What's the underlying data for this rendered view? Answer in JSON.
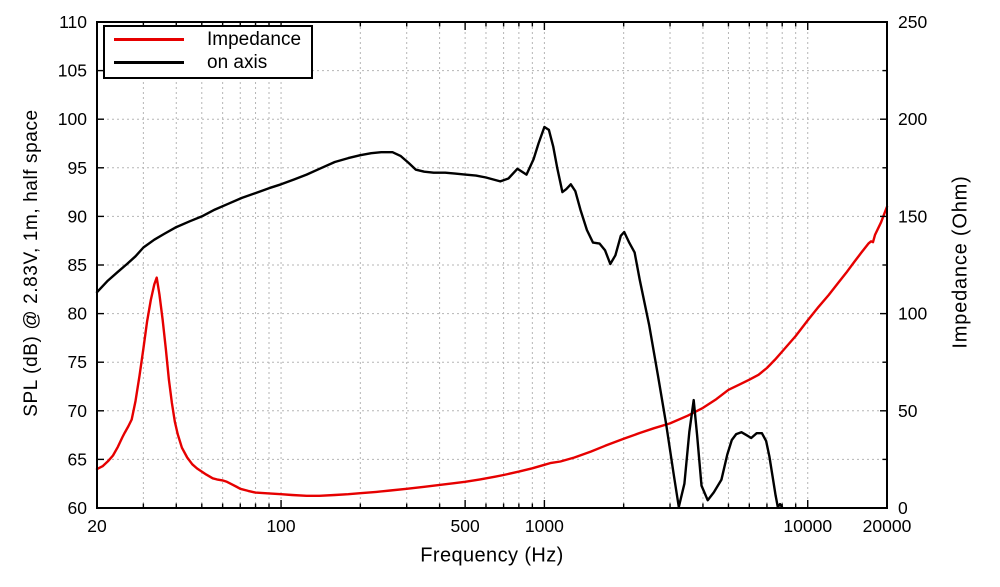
{
  "figure": {
    "background": "#ffffff",
    "grid_color": "#b5b5b5",
    "axis_color": "#000000"
  },
  "legend": {
    "items": [
      {
        "label": "Impedance",
        "color": "#e60000"
      },
      {
        "label": "on axis",
        "color": "#000000"
      }
    ]
  },
  "chart_data": {
    "type": "line",
    "title": "",
    "xlabel": "Frequency (Hz)",
    "x_scale": "log",
    "x_range": [
      20,
      20000
    ],
    "x_tick_labeled": [
      20,
      100,
      500,
      1000,
      10000,
      20000
    ],
    "x_grid": [
      30,
      40,
      50,
      60,
      70,
      80,
      90,
      100,
      200,
      300,
      400,
      500,
      600,
      700,
      800,
      900,
      1000,
      2000,
      3000,
      4000,
      5000,
      6000,
      7000,
      8000,
      9000,
      10000
    ],
    "grid_on": true,
    "legend_position": "upper-left",
    "y_left": {
      "label": "SPL (dB) @ 2.83V, 1m, half space",
      "range": [
        60,
        110
      ],
      "ticks": [
        60,
        65,
        70,
        75,
        80,
        85,
        90,
        95,
        100,
        105,
        110
      ]
    },
    "y_right": {
      "label": "Impedance (Ohm)",
      "range": [
        0,
        250
      ],
      "ticks_labeled": [
        0,
        50,
        100,
        150,
        200,
        250
      ],
      "ticks_minor": [
        25,
        75,
        125,
        175,
        225
      ]
    },
    "series": [
      {
        "name": "Impedance",
        "axis": "right",
        "unit": "Ohm",
        "color": "#e60000",
        "points": [
          [
            20,
            20.0
          ],
          [
            21,
            21.5
          ],
          [
            22,
            24.0
          ],
          [
            23,
            27.0
          ],
          [
            24,
            31.5
          ],
          [
            25,
            36.5
          ],
          [
            25.5,
            38.8
          ],
          [
            26.3,
            42.0
          ],
          [
            27.1,
            45.5
          ],
          [
            28,
            55
          ],
          [
            29,
            68
          ],
          [
            30,
            82
          ],
          [
            31,
            96
          ],
          [
            32,
            107
          ],
          [
            33,
            115
          ],
          [
            33.7,
            118.5
          ],
          [
            34.5,
            110
          ],
          [
            35.5,
            97
          ],
          [
            36.5,
            82
          ],
          [
            37.5,
            66
          ],
          [
            38.5,
            54
          ],
          [
            39.5,
            44.5
          ],
          [
            40.5,
            38
          ],
          [
            42,
            31
          ],
          [
            44,
            26
          ],
          [
            46,
            22.5
          ],
          [
            48,
            20.3
          ],
          [
            50,
            18.7
          ],
          [
            52,
            17.2
          ],
          [
            55,
            15.3
          ],
          [
            57,
            14.7
          ],
          [
            60,
            14.2
          ],
          [
            62,
            13.6
          ],
          [
            65,
            12.2
          ],
          [
            68,
            10.8
          ],
          [
            70,
            9.9
          ],
          [
            75,
            8.8
          ],
          [
            80,
            7.9
          ],
          [
            90,
            7.5
          ],
          [
            100,
            7.1
          ],
          [
            110,
            6.7
          ],
          [
            125,
            6.3
          ],
          [
            140,
            6.3
          ],
          [
            160,
            6.7
          ],
          [
            180,
            7.1
          ],
          [
            200,
            7.6
          ],
          [
            230,
            8.3
          ],
          [
            260,
            9.0
          ],
          [
            300,
            9.9
          ],
          [
            350,
            10.9
          ],
          [
            400,
            11.9
          ],
          [
            450,
            12.7
          ],
          [
            500,
            13.5
          ],
          [
            570,
            14.7
          ],
          [
            650,
            16.1
          ],
          [
            700,
            17.0
          ],
          [
            800,
            18.7
          ],
          [
            900,
            20.4
          ],
          [
            1000,
            22.2
          ],
          [
            1060,
            23.2
          ],
          [
            1150,
            23.9
          ],
          [
            1300,
            26.0
          ],
          [
            1500,
            29.0
          ],
          [
            1700,
            32.0
          ],
          [
            2000,
            35.6
          ],
          [
            2300,
            38.6
          ],
          [
            2600,
            41.0
          ],
          [
            3000,
            43.5
          ],
          [
            3500,
            47.5
          ],
          [
            4000,
            51.5
          ],
          [
            4500,
            56.0
          ],
          [
            5000,
            60.8
          ],
          [
            5500,
            63.5
          ],
          [
            6000,
            66.0
          ],
          [
            6500,
            68.5
          ],
          [
            7000,
            72.0
          ],
          [
            7500,
            76.2
          ],
          [
            8000,
            80.5
          ],
          [
            9000,
            88.5
          ],
          [
            10000,
            96.5
          ],
          [
            11000,
            103.5
          ],
          [
            12000,
            109.5
          ],
          [
            13000,
            115.5
          ],
          [
            14000,
            121.0
          ],
          [
            15000,
            126.5
          ],
          [
            16000,
            131.5
          ],
          [
            17000,
            136.0
          ],
          [
            17400,
            137.2
          ],
          [
            17700,
            136.8
          ],
          [
            18000,
            140.5
          ],
          [
            19000,
            147.0
          ],
          [
            20000,
            155.0
          ]
        ]
      },
      {
        "name": "on axis",
        "axis": "left",
        "unit": "dB",
        "color": "#000000",
        "points": [
          [
            20,
            82.2
          ],
          [
            22,
            83.4
          ],
          [
            24,
            84.3
          ],
          [
            26,
            85.1
          ],
          [
            28,
            85.9
          ],
          [
            30,
            86.8
          ],
          [
            33,
            87.6
          ],
          [
            36,
            88.2
          ],
          [
            40,
            88.9
          ],
          [
            45,
            89.5
          ],
          [
            50,
            90.0
          ],
          [
            56,
            90.7
          ],
          [
            63,
            91.3
          ],
          [
            71,
            91.9
          ],
          [
            80,
            92.4
          ],
          [
            90,
            92.9
          ],
          [
            100,
            93.3
          ],
          [
            112,
            93.8
          ],
          [
            125,
            94.3
          ],
          [
            140,
            94.9
          ],
          [
            160,
            95.6
          ],
          [
            180,
            96.0
          ],
          [
            200,
            96.3
          ],
          [
            220,
            96.5
          ],
          [
            240,
            96.6
          ],
          [
            265,
            96.6
          ],
          [
            285,
            96.2
          ],
          [
            305,
            95.5
          ],
          [
            325,
            94.8
          ],
          [
            350,
            94.6
          ],
          [
            380,
            94.5
          ],
          [
            420,
            94.5
          ],
          [
            458,
            94.4
          ],
          [
            500,
            94.3
          ],
          [
            550,
            94.2
          ],
          [
            600,
            94.0
          ],
          [
            680,
            93.6
          ],
          [
            730,
            93.9
          ],
          [
            790,
            94.9
          ],
          [
            855,
            94.3
          ],
          [
            910,
            95.9
          ],
          [
            950,
            97.5
          ],
          [
            1000,
            99.2
          ],
          [
            1040,
            98.9
          ],
          [
            1080,
            97.2
          ],
          [
            1120,
            94.9
          ],
          [
            1170,
            92.5
          ],
          [
            1210,
            92.8
          ],
          [
            1260,
            93.3
          ],
          [
            1310,
            92.6
          ],
          [
            1370,
            90.7
          ],
          [
            1450,
            88.6
          ],
          [
            1530,
            87.3
          ],
          [
            1620,
            87.2
          ],
          [
            1700,
            86.5
          ],
          [
            1780,
            85.1
          ],
          [
            1860,
            86.0
          ],
          [
            1950,
            88.0
          ],
          [
            2010,
            88.4
          ],
          [
            2100,
            87.3
          ],
          [
            2200,
            86.3
          ],
          [
            2300,
            83.5
          ],
          [
            2500,
            78.8
          ],
          [
            2700,
            73.6
          ],
          [
            2900,
            68.6
          ],
          [
            3100,
            63.4
          ],
          [
            3240,
            60.1
          ],
          [
            3400,
            62.5
          ],
          [
            3550,
            67.8
          ],
          [
            3690,
            71.1
          ],
          [
            3800,
            67.5
          ],
          [
            3950,
            62.3
          ],
          [
            4170,
            60.8
          ],
          [
            4400,
            61.6
          ],
          [
            4700,
            62.9
          ],
          [
            4950,
            65.5
          ],
          [
            5150,
            67.0
          ],
          [
            5350,
            67.6
          ],
          [
            5600,
            67.8
          ],
          [
            5850,
            67.5
          ],
          [
            6100,
            67.2
          ],
          [
            6400,
            67.7
          ],
          [
            6700,
            67.7
          ],
          [
            6950,
            66.9
          ],
          [
            7150,
            65.3
          ],
          [
            7350,
            63.3
          ],
          [
            7550,
            61.3
          ],
          [
            7700,
            60.1
          ],
          [
            7850,
            60.4
          ],
          [
            8000,
            60.05
          ]
        ]
      }
    ]
  }
}
